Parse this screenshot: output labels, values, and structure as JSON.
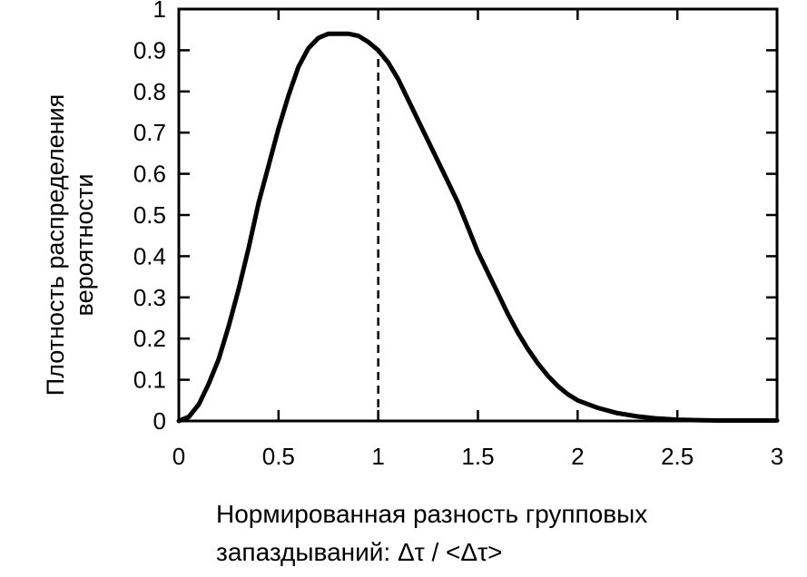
{
  "chart_data": {
    "type": "line",
    "title": "",
    "ylabel_lines": [
      "Плотность распределения",
      "вероятности"
    ],
    "xlabel_lines": [
      "Нормированная разность групповых",
      "запаздываний: Δτ / <Δτ>"
    ],
    "xlim": [
      0,
      3
    ],
    "ylim": [
      0,
      1
    ],
    "x_ticks": [
      0,
      0.5,
      1,
      1.5,
      2,
      2.5,
      3
    ],
    "x_tick_labels": [
      "0",
      "0.5",
      "1",
      "1.5",
      "2",
      "2.5",
      "3"
    ],
    "y_ticks": [
      0,
      0.1,
      0.2,
      0.3,
      0.4,
      0.5,
      0.6,
      0.7,
      0.8,
      0.9,
      1
    ],
    "y_tick_labels": [
      "0",
      "0.1",
      "0.2",
      "0.3",
      "0.4",
      "0.5",
      "0.6",
      "0.7",
      "0.8",
      "0.9",
      "1"
    ],
    "grid": false,
    "legend": false,
    "reference_line": {
      "x": 1,
      "style": "dashed"
    },
    "series": [
      {
        "x": [
          0,
          0.05,
          0.1,
          0.15,
          0.2,
          0.25,
          0.3,
          0.35,
          0.4,
          0.45,
          0.5,
          0.55,
          0.6,
          0.65,
          0.7,
          0.75,
          0.8,
          0.85,
          0.9,
          0.95,
          1.0,
          1.05,
          1.1,
          1.15,
          1.2,
          1.25,
          1.3,
          1.35,
          1.4,
          1.45,
          1.5,
          1.55,
          1.6,
          1.65,
          1.7,
          1.75,
          1.8,
          1.85,
          1.9,
          1.95,
          2.0,
          2.1,
          2.2,
          2.3,
          2.4,
          2.5,
          2.6,
          2.7,
          2.8,
          2.9,
          3.0
        ],
        "y": [
          0,
          0.01,
          0.04,
          0.09,
          0.15,
          0.23,
          0.32,
          0.42,
          0.53,
          0.62,
          0.71,
          0.79,
          0.86,
          0.905,
          0.93,
          0.94,
          0.94,
          0.94,
          0.935,
          0.92,
          0.9,
          0.87,
          0.83,
          0.78,
          0.73,
          0.68,
          0.63,
          0.58,
          0.53,
          0.47,
          0.41,
          0.36,
          0.31,
          0.26,
          0.215,
          0.175,
          0.14,
          0.11,
          0.085,
          0.065,
          0.05,
          0.032,
          0.019,
          0.011,
          0.006,
          0.003,
          0.002,
          0.001,
          0.001,
          0.001,
          0.001
        ]
      }
    ]
  }
}
